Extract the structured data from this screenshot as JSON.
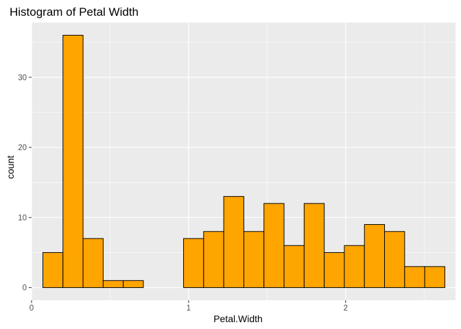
{
  "chart_data": {
    "type": "bar",
    "title": "Histogram of Petal Width",
    "xlabel": "Petal.Width",
    "ylabel": "count",
    "bin_width": 0.128,
    "bins": [
      {
        "x0": 0.072,
        "x1": 0.2,
        "count": 5
      },
      {
        "x0": 0.2,
        "x1": 0.328,
        "count": 36
      },
      {
        "x0": 0.328,
        "x1": 0.456,
        "count": 7
      },
      {
        "x0": 0.456,
        "x1": 0.584,
        "count": 1
      },
      {
        "x0": 0.584,
        "x1": 0.712,
        "count": 1
      },
      {
        "x0": 0.712,
        "x1": 0.84,
        "count": 0
      },
      {
        "x0": 0.84,
        "x1": 0.968,
        "count": 0
      },
      {
        "x0": 0.968,
        "x1": 1.096,
        "count": 7
      },
      {
        "x0": 1.096,
        "x1": 1.224,
        "count": 8
      },
      {
        "x0": 1.224,
        "x1": 1.352,
        "count": 13
      },
      {
        "x0": 1.352,
        "x1": 1.48,
        "count": 8
      },
      {
        "x0": 1.48,
        "x1": 1.608,
        "count": 12
      },
      {
        "x0": 1.608,
        "x1": 1.736,
        "count": 6
      },
      {
        "x0": 1.736,
        "x1": 1.864,
        "count": 12
      },
      {
        "x0": 1.864,
        "x1": 1.992,
        "count": 5
      },
      {
        "x0": 1.992,
        "x1": 2.12,
        "count": 6
      },
      {
        "x0": 2.12,
        "x1": 2.248,
        "count": 9
      },
      {
        "x0": 2.248,
        "x1": 2.376,
        "count": 8
      },
      {
        "x0": 2.376,
        "x1": 2.504,
        "count": 3
      },
      {
        "x0": 2.504,
        "x1": 2.632,
        "count": 3
      }
    ],
    "xlim": [
      -0.0,
      2.7
    ],
    "ylim": [
      -1.8,
      37.8
    ],
    "x_ticks": [
      0,
      1,
      2
    ],
    "x_tick_labels": [
      "0",
      "1",
      "2"
    ],
    "y_ticks": [
      0,
      10,
      20,
      30
    ],
    "y_tick_labels": [
      "0",
      "10",
      "20",
      "30"
    ],
    "grid": true,
    "colors": {
      "bar_fill": "#FFA500",
      "bar_outline": "#000000",
      "panel_background": "#EBEBEB",
      "grid": "#FFFFFF"
    }
  }
}
